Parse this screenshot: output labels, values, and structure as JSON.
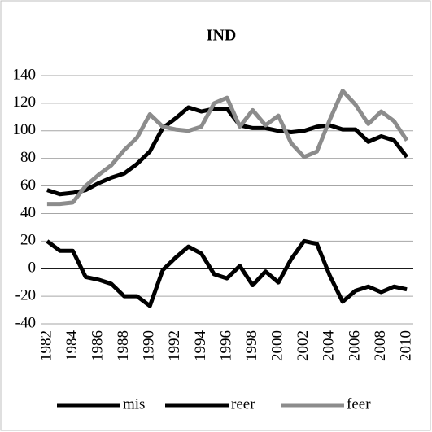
{
  "chart_data": {
    "type": "line",
    "title": "IND",
    "categories": [
      "1982",
      null,
      "1984",
      null,
      "1986",
      null,
      "1988",
      null,
      "1990",
      null,
      "1992",
      null,
      "1994",
      null,
      "1996",
      null,
      "1998",
      null,
      "2000",
      null,
      "2002",
      null,
      "2004",
      null,
      "2006",
      null,
      "2008",
      null,
      "2010"
    ],
    "series": [
      {
        "name": "mis",
        "color": "#000000",
        "values": [
          20,
          13,
          13,
          -6,
          -8,
          -11,
          -20,
          -20,
          -27,
          -1,
          8,
          16,
          11,
          -4,
          -7,
          2,
          -12,
          -2,
          -10,
          7,
          20,
          18,
          -5,
          -24,
          -16,
          -13,
          -17,
          -13,
          -15
        ]
      },
      {
        "name": "reer",
        "color": "#000000",
        "values": [
          57,
          54,
          55,
          57,
          62,
          66,
          69,
          76,
          85,
          102,
          109,
          117,
          114,
          116,
          116,
          104,
          102,
          102,
          100,
          99,
          100,
          103,
          104,
          101,
          101,
          92,
          96,
          93,
          81
        ]
      },
      {
        "name": "feer",
        "color": "#8c8c8c",
        "values": [
          47,
          47,
          48,
          60,
          68,
          75,
          86,
          95,
          112,
          103,
          101,
          100,
          103,
          120,
          124,
          103,
          115,
          104,
          111,
          91,
          81,
          85,
          108,
          129,
          119,
          105,
          114,
          107,
          93
        ]
      }
    ],
    "ylim": [
      -40,
      140
    ],
    "yticks": [
      -40,
      -20,
      0,
      20,
      40,
      60,
      80,
      100,
      120,
      140
    ],
    "grid": true,
    "legend": "bottom"
  }
}
